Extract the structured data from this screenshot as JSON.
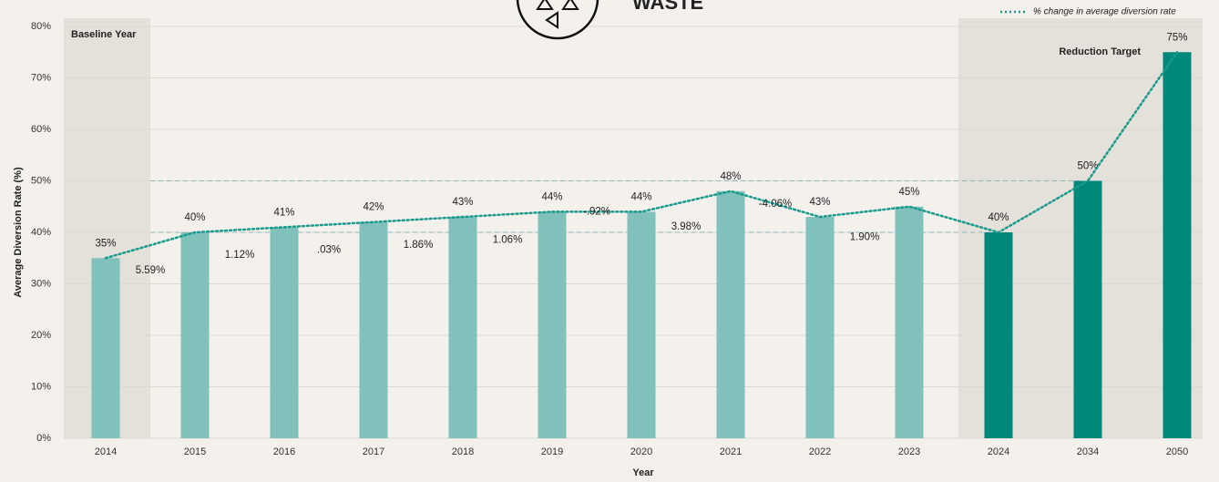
{
  "chart_data": {
    "type": "bar",
    "title": "WASTE",
    "x_label": "Year",
    "y_label": "Average Diversion Rate (%)",
    "categories": [
      "2014",
      "2015",
      "2016",
      "2017",
      "2018",
      "2019",
      "2020",
      "2021",
      "2022",
      "2023",
      "2024",
      "2034",
      "2050"
    ],
    "values": [
      35,
      40,
      41,
      42,
      43,
      44,
      44,
      48,
      43,
      45,
      40,
      50,
      75
    ],
    "value_labels": [
      "35%",
      "40%",
      "41%",
      "42%",
      "43%",
      "44%",
      "44%",
      "48%",
      "43%",
      "45%",
      "40%",
      "50%",
      "75%"
    ],
    "colors": [
      "#80c1bb",
      "#80c1bb",
      "#80c1bb",
      "#80c1bb",
      "#80c1bb",
      "#80c1bb",
      "#80c1bb",
      "#80c1bb",
      "#80c1bb",
      "#80c1bb",
      "#00897b",
      "#00897b",
      "#00897b"
    ],
    "line": {
      "name": "% change in average diversion rate",
      "color": "#1a9a8c"
    },
    "changes": {
      "values": [
        5.59,
        1.12,
        0.03,
        1.86,
        1.06,
        -0.92,
        3.98,
        -4.06,
        1.9
      ],
      "value_labels": [
        "5.59%",
        "1.12%",
        ".03%",
        "1.86%",
        "1.06%",
        "-.92%",
        "3.98%",
        "-4.06%",
        "1.90%"
      ]
    },
    "regions": [
      {
        "label": "Baseline Year",
        "from": "2014",
        "to": "2014"
      },
      {
        "label": "Reduction Target",
        "from": "2024",
        "to": "2050"
      }
    ],
    "reference_lines": [
      {
        "value": 50,
        "to": "2034"
      },
      {
        "value": 40,
        "to": "2024"
      }
    ],
    "ylim": [
      0,
      80
    ],
    "yticks": [
      {
        "value": 0,
        "label": "0%"
      },
      {
        "value": 10,
        "label": "10%"
      },
      {
        "value": 20,
        "label": "20%"
      },
      {
        "value": 30,
        "label": "30%"
      },
      {
        "value": 40,
        "label": "40%"
      },
      {
        "value": 50,
        "label": "50%"
      },
      {
        "value": 60,
        "label": "60%"
      },
      {
        "value": 70,
        "label": "70%"
      },
      {
        "value": 80,
        "label": "80%"
      }
    ],
    "grid": true
  }
}
